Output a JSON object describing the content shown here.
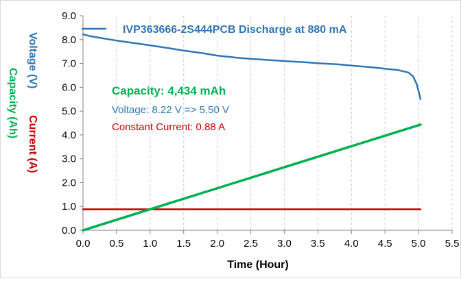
{
  "chart_data": {
    "type": "line",
    "title": "",
    "xlabel": "Time (Hour)",
    "ylabels": [
      {
        "text": "Voltage (V)",
        "color": "#2e75b6"
      },
      {
        "text": "Capacity (Ah)",
        "color": "#00b050"
      },
      {
        "text": "Current (A)",
        "color": "#c00000"
      }
    ],
    "xlim": [
      0,
      5.5
    ],
    "ylim": [
      0,
      9
    ],
    "x_ticks": [
      "0.0",
      "0.5",
      "1.0",
      "1.5",
      "2.0",
      "2.5",
      "3.0",
      "3.5",
      "4.0",
      "4.5",
      "5.0",
      "5.5"
    ],
    "y_ticks": [
      "0.0",
      "1.0",
      "2.0",
      "3.0",
      "4.0",
      "5.0",
      "6.0",
      "7.0",
      "8.0",
      "9.0"
    ],
    "x_tick_values": [
      0,
      0.5,
      1,
      1.5,
      2,
      2.5,
      3,
      3.5,
      4,
      4.5,
      5,
      5.5
    ],
    "y_tick_values": [
      0,
      1,
      2,
      3,
      4,
      5,
      6,
      7,
      8,
      9
    ],
    "grid": {
      "x": true,
      "y": false,
      "style": "dashed"
    },
    "legend": {
      "position": "top",
      "entries": [
        {
          "name": "IVP363666-2S444PCB Discharge at 880 mA",
          "color": "#2e75b6"
        }
      ]
    },
    "annotations": [
      {
        "text": "Capacity: 4,434 mAh",
        "color": "#00b050",
        "bold": true
      },
      {
        "text": "Voltage: 8.22 V => 5.50 V",
        "color": "#2e75b6",
        "bold": false
      },
      {
        "text": "Constant Current: 0.88 A",
        "color": "#c00000",
        "bold": false
      }
    ],
    "series": [
      {
        "name": "IVP363666-2S444PCB Discharge at 880 mA",
        "color": "#2e75b6",
        "x": [
          0,
          0.1,
          0.3,
          0.5,
          0.7,
          1.0,
          1.3,
          1.5,
          1.8,
          2.0,
          2.3,
          2.5,
          2.8,
          3.0,
          3.3,
          3.5,
          3.8,
          4.0,
          4.3,
          4.5,
          4.7,
          4.85,
          4.92,
          4.97,
          5.0,
          5.03
        ],
        "y": [
          8.22,
          8.15,
          8.05,
          7.96,
          7.88,
          7.76,
          7.63,
          7.54,
          7.42,
          7.33,
          7.24,
          7.19,
          7.14,
          7.1,
          7.05,
          7.01,
          6.96,
          6.91,
          6.84,
          6.78,
          6.72,
          6.62,
          6.45,
          6.15,
          5.85,
          5.5
        ]
      },
      {
        "name": "Capacity",
        "color": "#00b050",
        "x": [
          0,
          5.03
        ],
        "y": [
          0,
          4.434
        ]
      },
      {
        "name": "Current",
        "color": "#c00000",
        "x": [
          0,
          5.03
        ],
        "y": [
          0.88,
          0.88
        ]
      }
    ]
  }
}
